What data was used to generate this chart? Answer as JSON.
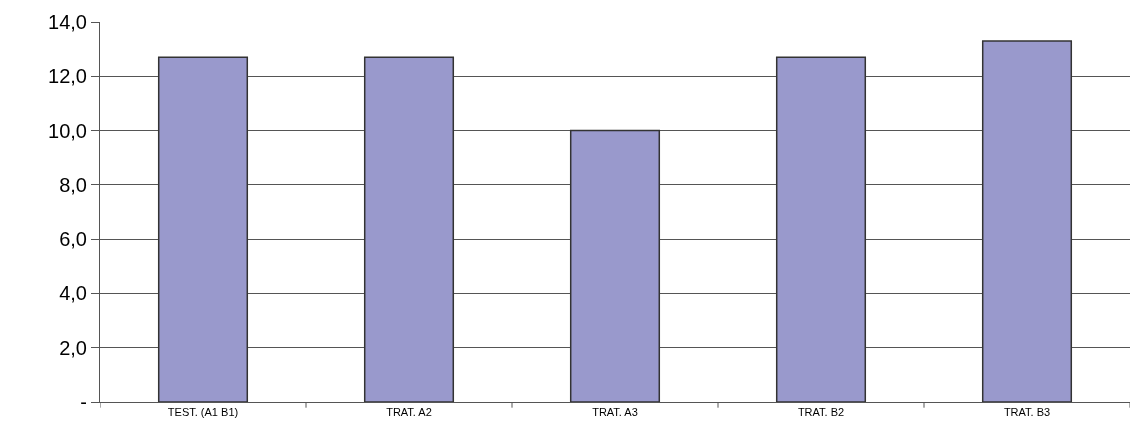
{
  "chart_data": {
    "type": "bar",
    "categories": [
      "TEST. (A1 B1)",
      "TRAT. A2",
      "TRAT. A3",
      "TRAT. B2",
      "TRAT. B3"
    ],
    "values": [
      12.7,
      12.7,
      10.0,
      12.7,
      13.3
    ],
    "color": "#9999cc",
    "ylim": [
      0,
      14
    ],
    "yticks": [
      {
        "value": 0,
        "label": "-"
      },
      {
        "value": 2,
        "label": "2,0"
      },
      {
        "value": 4,
        "label": "4,0"
      },
      {
        "value": 6,
        "label": "6,0"
      },
      {
        "value": 8,
        "label": "8,0"
      },
      {
        "value": 10,
        "label": "10,0"
      },
      {
        "value": 12,
        "label": "12,0"
      },
      {
        "value": 14,
        "label": "14,0"
      }
    ],
    "grid": "y"
  }
}
